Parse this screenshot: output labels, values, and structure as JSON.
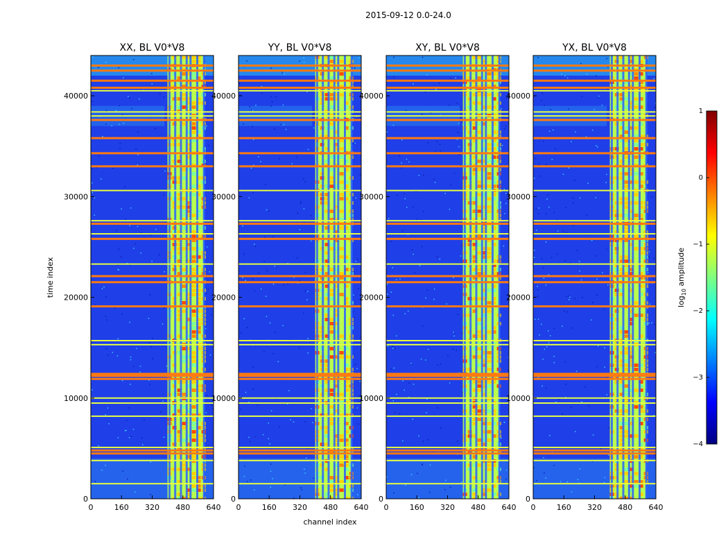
{
  "chart_data": {
    "type": "heatmap",
    "title": "2015-09-12 0.0-24.0",
    "xlabel": "channel index",
    "ylabel": "time index",
    "xlim": [
      0,
      640
    ],
    "ylim": [
      0,
      44000
    ],
    "x_ticks": [
      0,
      160,
      320,
      480,
      640
    ],
    "y_ticks": [
      0,
      10000,
      20000,
      30000,
      40000
    ],
    "panels": [
      {
        "title": "XX, BL V0*V8",
        "band_start": 400,
        "band_end": 590
      },
      {
        "title": "YY, BL V0*V8",
        "band_start": 400,
        "band_end": 590
      },
      {
        "title": "XY, BL V0*V8",
        "band_start": 400,
        "band_end": 590
      },
      {
        "title": "YX, BL V0*V8",
        "band_start": 400,
        "band_end": 590
      }
    ],
    "vertical_stripes": [
      410,
      440,
      470,
      500,
      520,
      555,
      590
    ],
    "rfi_rows_orange": [
      43000,
      42500,
      41500,
      40800,
      37600,
      35800,
      34300,
      33000,
      27300,
      25800,
      22100,
      21500,
      19100,
      12400,
      12200,
      11900,
      4800,
      4500
    ],
    "rfi_rows_yellow": [
      40500,
      38400,
      38000,
      30600,
      27600,
      26300,
      23300,
      15700,
      15300,
      10000,
      9500,
      8200,
      5100,
      3800,
      1500
    ],
    "colorbar": {
      "label": "log10 amplitude",
      "label_main": "log",
      "label_sub": "10",
      "label_rest": " amplitude",
      "range": [
        -4,
        1
      ],
      "ticks": [
        "1",
        "0",
        "−1",
        "−2",
        "−3",
        "−4"
      ],
      "colors": [
        "#800000",
        "#ff0000",
        "#ff8000",
        "#ffff00",
        "#80ff80",
        "#00ffff",
        "#0080ff",
        "#0000ff",
        "#000080"
      ]
    }
  }
}
